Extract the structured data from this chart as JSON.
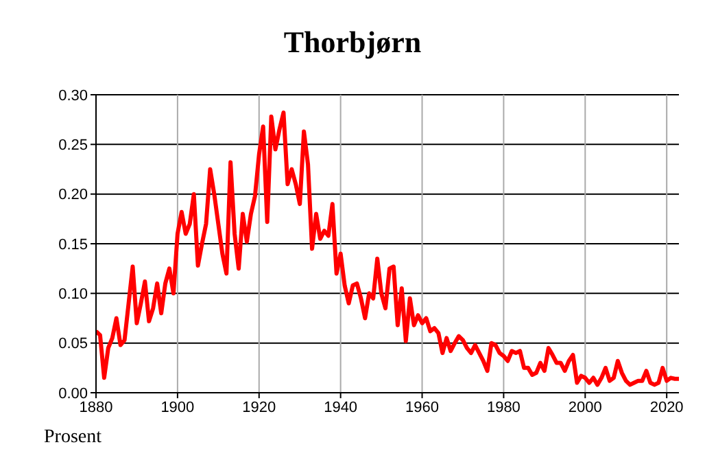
{
  "chart_data": {
    "type": "line",
    "title": "Thorbjørn",
    "ylabel": "Prosent",
    "x": [
      1880,
      1881,
      1882,
      1883,
      1884,
      1885,
      1886,
      1887,
      1888,
      1889,
      1890,
      1891,
      1892,
      1893,
      1894,
      1895,
      1896,
      1897,
      1898,
      1899,
      1900,
      1901,
      1902,
      1903,
      1904,
      1905,
      1906,
      1907,
      1908,
      1909,
      1910,
      1911,
      1912,
      1913,
      1914,
      1915,
      1916,
      1917,
      1918,
      1919,
      1920,
      1921,
      1922,
      1923,
      1924,
      1925,
      1926,
      1927,
      1928,
      1929,
      1930,
      1931,
      1932,
      1933,
      1934,
      1935,
      1936,
      1937,
      1938,
      1939,
      1940,
      1941,
      1942,
      1943,
      1944,
      1945,
      1946,
      1947,
      1948,
      1949,
      1950,
      1951,
      1952,
      1953,
      1954,
      1955,
      1956,
      1957,
      1958,
      1959,
      1960,
      1961,
      1962,
      1963,
      1964,
      1965,
      1966,
      1967,
      1968,
      1969,
      1970,
      1971,
      1972,
      1973,
      1974,
      1975,
      1976,
      1977,
      1978,
      1979,
      1980,
      1981,
      1982,
      1983,
      1984,
      1985,
      1986,
      1987,
      1988,
      1989,
      1990,
      1991,
      1992,
      1993,
      1994,
      1995,
      1996,
      1997,
      1998,
      1999,
      2000,
      2001,
      2002,
      2003,
      2004,
      2005,
      2006,
      2007,
      2008,
      2009,
      2010,
      2011,
      2012,
      2013,
      2014,
      2015,
      2016,
      2017,
      2018,
      2019,
      2020,
      2021,
      2022,
      2023
    ],
    "series": [
      {
        "color": "#ff0000",
        "values": [
          0.062,
          0.058,
          0.015,
          0.045,
          0.055,
          0.075,
          0.048,
          0.053,
          0.09,
          0.127,
          0.07,
          0.09,
          0.112,
          0.072,
          0.085,
          0.11,
          0.08,
          0.11,
          0.125,
          0.1,
          0.16,
          0.182,
          0.16,
          0.17,
          0.2,
          0.128,
          0.15,
          0.17,
          0.225,
          0.2,
          0.17,
          0.14,
          0.12,
          0.232,
          0.16,
          0.125,
          0.18,
          0.152,
          0.18,
          0.198,
          0.24,
          0.268,
          0.172,
          0.278,
          0.245,
          0.265,
          0.282,
          0.21,
          0.225,
          0.21,
          0.19,
          0.263,
          0.23,
          0.145,
          0.18,
          0.155,
          0.163,
          0.158,
          0.19,
          0.12,
          0.14,
          0.108,
          0.09,
          0.108,
          0.11,
          0.095,
          0.075,
          0.1,
          0.095,
          0.135,
          0.1,
          0.085,
          0.125,
          0.127,
          0.068,
          0.105,
          0.052,
          0.095,
          0.068,
          0.078,
          0.07,
          0.075,
          0.062,
          0.065,
          0.06,
          0.04,
          0.055,
          0.042,
          0.05,
          0.057,
          0.053,
          0.045,
          0.04,
          0.048,
          0.04,
          0.032,
          0.022,
          0.05,
          0.048,
          0.04,
          0.037,
          0.032,
          0.042,
          0.04,
          0.042,
          0.025,
          0.025,
          0.018,
          0.02,
          0.03,
          0.022,
          0.045,
          0.038,
          0.03,
          0.03,
          0.022,
          0.032,
          0.038,
          0.01,
          0.017,
          0.015,
          0.01,
          0.015,
          0.008,
          0.015,
          0.025,
          0.012,
          0.015,
          0.032,
          0.02,
          0.012,
          0.008,
          0.01,
          0.012,
          0.012,
          0.022,
          0.01,
          0.008,
          0.01,
          0.025,
          0.012,
          0.015,
          0.014,
          0.014
        ]
      }
    ],
    "xlim": [
      1880,
      2023
    ],
    "xticks": [
      1880,
      1900,
      1920,
      1940,
      1960,
      1980,
      2000,
      2020
    ],
    "ylim": [
      0,
      0.3
    ],
    "yticks": [
      {
        "value": 0,
        "label": "0.00"
      },
      {
        "value": 0.05,
        "label": "0.05"
      },
      {
        "value": 0.1,
        "label": "0.10"
      },
      {
        "value": 0.15,
        "label": "0.15"
      },
      {
        "value": 0.2,
        "label": "0.20"
      },
      {
        "value": 0.25,
        "label": "0.25"
      },
      {
        "value": 0.3,
        "label": "0.30"
      }
    ],
    "grid": true,
    "marker": "none",
    "line_style": "solid"
  }
}
